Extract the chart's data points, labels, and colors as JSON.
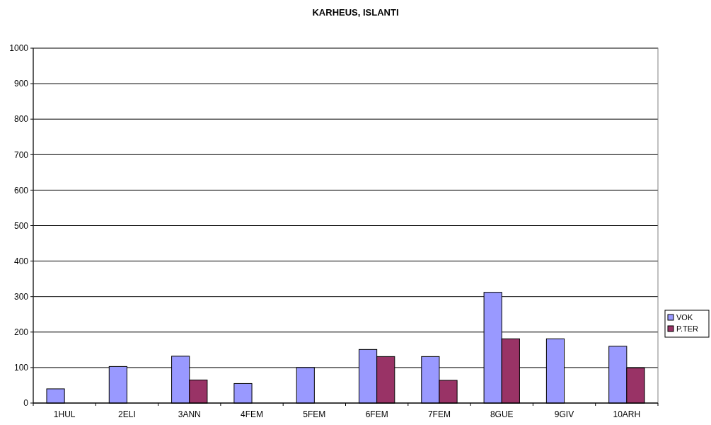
{
  "chart_data": {
    "type": "bar",
    "title": "KARHEUS, ISLANTI",
    "categories": [
      "1HUL",
      "2ELI",
      "3ANN",
      "4FEM",
      "5FEM",
      "6FEM",
      "7FEM",
      "8GUE",
      "9GIV",
      "10ARH"
    ],
    "series": [
      {
        "name": "VOK",
        "color": "#9999ff",
        "values": [
          40,
          103,
          132,
          55,
          100,
          151,
          131,
          312,
          181,
          160
        ]
      },
      {
        "name": "P.TER",
        "color": "#993366",
        "values": [
          null,
          null,
          65,
          null,
          null,
          131,
          64,
          181,
          null,
          99
        ]
      }
    ],
    "ylim": [
      0,
      1000
    ],
    "yticks": [
      0,
      100,
      200,
      300,
      400,
      500,
      600,
      700,
      800,
      900,
      1000
    ],
    "grid": "y",
    "legend": "right"
  }
}
